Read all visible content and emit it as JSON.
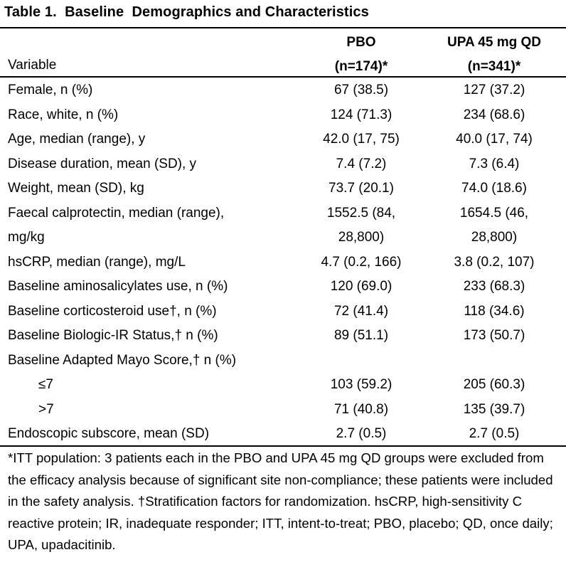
{
  "title": "Table 1.  Baseline  Demographics and Characteristics",
  "header": {
    "variable": "Variable",
    "pbo_line1": "PBO",
    "pbo_line2": "(n=174)*",
    "upa_line1": "UPA 45 mg QD",
    "upa_line2": "(n=341)*"
  },
  "rows": [
    {
      "variable": "Female, n (%)",
      "pbo": "67 (38.5)",
      "upa": "127 (37.2)"
    },
    {
      "variable": "Race, white, n (%)",
      "pbo": "124 (71.3)",
      "upa": "234 (68.6)"
    },
    {
      "variable": "Age, median (range), y",
      "pbo": "42.0 (17, 75)",
      "upa": "40.0 (17, 74)"
    },
    {
      "variable": "Disease duration, mean (SD), y",
      "pbo": "7.4 (7.2)",
      "upa": "7.3 (6.4)"
    },
    {
      "variable": "Weight, mean (SD), kg",
      "pbo": "73.7 (20.1)",
      "upa": "74.0 (18.6)"
    },
    {
      "variable_line1": "Faecal calprotectin, median (range),",
      "variable_line2": "mg/kg",
      "pbo_line1": "1552.5 (84,",
      "pbo_line2": "28,800)",
      "upa_line1": "1654.5 (46,",
      "upa_line2": "28,800)"
    },
    {
      "variable": "hsCRP, median (range), mg/L",
      "pbo": "4.7 (0.2, 166)",
      "upa": "3.8 (0.2, 107)"
    },
    {
      "variable": "Baseline aminosalicylates use, n (%)",
      "pbo": "120 (69.0)",
      "upa": "233 (68.3)"
    },
    {
      "variable": "Baseline corticosteroid use†, n (%)",
      "pbo": "72 (41.4)",
      "upa": "118 (34.6)"
    },
    {
      "variable": "Baseline Biologic-IR Status,† n (%)",
      "pbo": "89 (51.1)",
      "upa": "173 (50.7)"
    },
    {
      "variable": "Baseline Adapted Mayo Score,† n (%)",
      "pbo": "",
      "upa": ""
    },
    {
      "variable": "≤7",
      "pbo": "103 (59.2)",
      "upa": "205 (60.3)"
    },
    {
      "variable": ">7",
      "pbo": "71 (40.8)",
      "upa": "135 (39.7)"
    },
    {
      "variable": "Endoscopic subscore, mean (SD)",
      "pbo": "2.7 (0.5)",
      "upa": "2.7 (0.5)"
    }
  ],
  "footnote": "*ITT population: 3 patients each in the PBO and UPA 45 mg QD groups were excluded from the efficacy analysis because of significant site non-compliance; these patients were included in the safety analysis. †Stratification factors for randomization. hsCRP, high-sensitivity C reactive protein; IR, inadequate responder; ITT, intent-to-treat; PBO, placebo; QD, once daily; UPA, upadacitinib."
}
